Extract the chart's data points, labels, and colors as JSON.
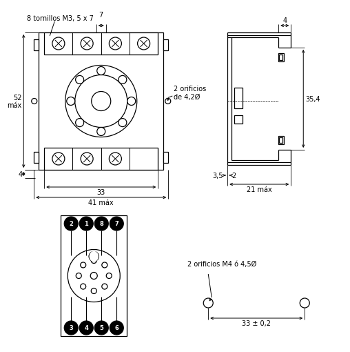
{
  "bg_color": "#ffffff",
  "line_color": "#000000",
  "annotations": {
    "tornillos": "8 tornillos M3, 5 x 7",
    "orificios_top": "2 orificios\nde 4,2Ø",
    "dim_7": "7",
    "dim_52": "52\nmáx",
    "dim_4_left": "4",
    "dim_33": "33",
    "dim_41": "41 máx",
    "dim_4_right": "4",
    "dim_354": "35,4",
    "dim_35": "3,5",
    "dim_2": "2",
    "dim_21": "21 máx",
    "orificios_bottom": "2 orificios M4 ó 4,5Ø",
    "dim_33_2": "33 ± 0,2"
  },
  "pin_top": [
    [
      "2",
      -33
    ],
    [
      "1",
      -11
    ],
    [
      "8",
      11
    ],
    [
      "7",
      33
    ]
  ],
  "pin_bot": [
    [
      "3",
      -33
    ],
    [
      "4",
      -11
    ],
    [
      "5",
      11
    ],
    [
      "6",
      33
    ]
  ]
}
